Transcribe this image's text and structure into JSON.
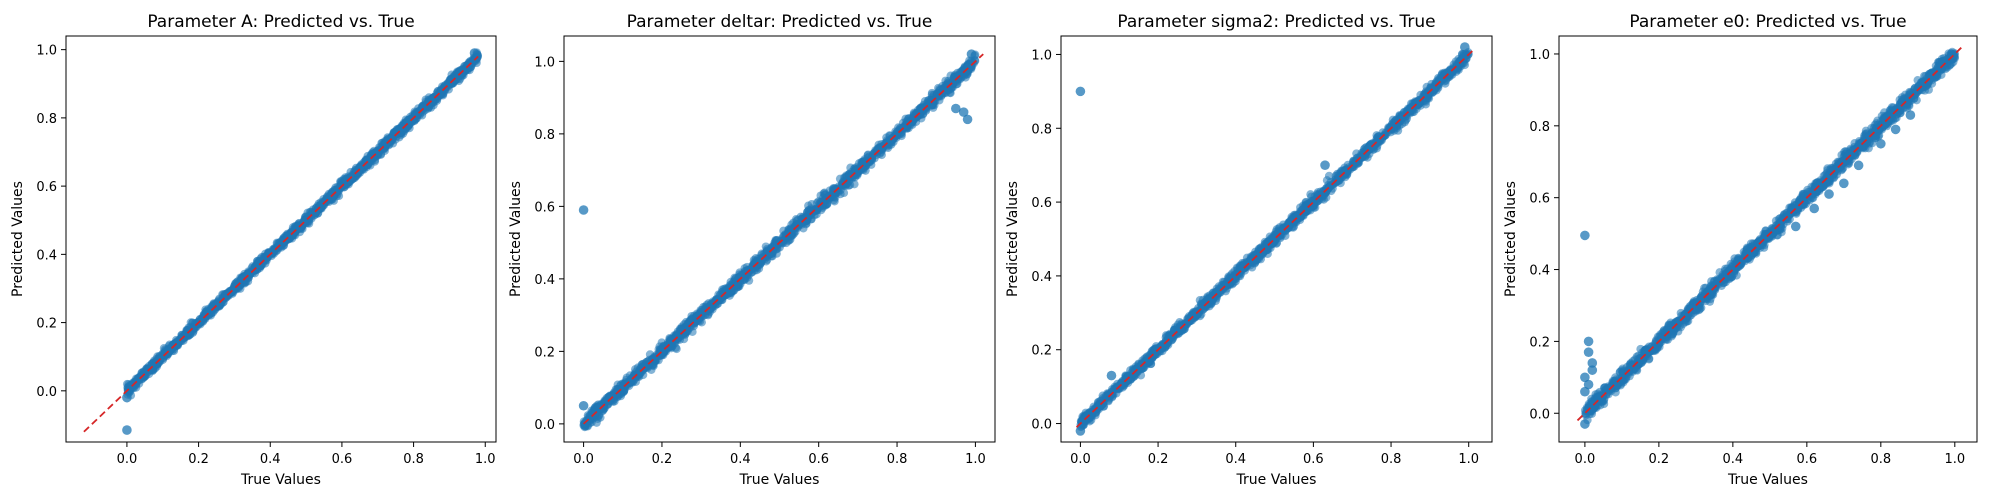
{
  "chart_data": [
    {
      "type": "scatter",
      "title": "Parameter A: Predicted vs. True",
      "xlabel": "True Values",
      "ylabel": "Predicted Values",
      "xlim": [
        -0.17,
        1.03
      ],
      "ylim": [
        -0.15,
        1.04
      ],
      "xticks": [
        "0.0",
        "0.2",
        "0.4",
        "0.6",
        "0.8",
        "1.0"
      ],
      "yticks": [
        "0.0",
        "0.2",
        "0.4",
        "0.6",
        "0.8",
        "1.0"
      ],
      "diagonal": [
        -0.12,
        0.98
      ],
      "true_range": [
        0.0,
        0.98
      ],
      "noise": 0.007,
      "outliers": [
        {
          "x": 0.0,
          "y": -0.115
        },
        {
          "x": 0.0,
          "y": -0.02
        },
        {
          "x": 0.97,
          "y": 0.99
        }
      ]
    },
    {
      "type": "scatter",
      "title": "Parameter deltar: Predicted vs. True",
      "xlabel": "True Values",
      "ylabel": "Predicted Values",
      "xlim": [
        -0.05,
        1.05
      ],
      "ylim": [
        -0.05,
        1.07
      ],
      "xticks": [
        "0.0",
        "0.2",
        "0.4",
        "0.6",
        "0.8",
        "1.0"
      ],
      "yticks": [
        "0.0",
        "0.2",
        "0.4",
        "0.6",
        "0.8",
        "1.0"
      ],
      "diagonal": [
        0.0,
        1.02
      ],
      "true_range": [
        0.0,
        1.0
      ],
      "noise": 0.009,
      "outliers": [
        {
          "x": 0.0,
          "y": 0.59
        },
        {
          "x": 0.97,
          "y": 0.86
        },
        {
          "x": 0.98,
          "y": 0.84
        },
        {
          "x": 0.95,
          "y": 0.87
        },
        {
          "x": 0.99,
          "y": 1.02
        },
        {
          "x": 0.0,
          "y": 0.05
        }
      ]
    },
    {
      "type": "scatter",
      "title": "Parameter sigma2: Predicted vs. True",
      "xlabel": "True Values",
      "ylabel": "Predicted Values",
      "xlim": [
        -0.05,
        1.06
      ],
      "ylim": [
        -0.05,
        1.05
      ],
      "xticks": [
        "0.0",
        "0.2",
        "0.4",
        "0.6",
        "0.8",
        "1.0"
      ],
      "yticks": [
        "0.0",
        "0.2",
        "0.4",
        "0.6",
        "0.8",
        "1.0"
      ],
      "diagonal": [
        -0.01,
        1.01
      ],
      "true_range": [
        0.0,
        1.0
      ],
      "noise": 0.008,
      "outliers": [
        {
          "x": 0.0,
          "y": 0.9
        },
        {
          "x": 0.0,
          "y": -0.02
        },
        {
          "x": 0.08,
          "y": 0.13
        },
        {
          "x": 0.63,
          "y": 0.7
        },
        {
          "x": 0.99,
          "y": 1.02
        }
      ]
    },
    {
      "type": "scatter",
      "title": "Parameter e0: Predicted vs. True",
      "xlabel": "True Values",
      "ylabel": "Predicted Values",
      "xlim": [
        -0.07,
        1.06
      ],
      "ylim": [
        -0.08,
        1.05
      ],
      "xticks": [
        "0.0",
        "0.2",
        "0.4",
        "0.6",
        "0.8",
        "1.0"
      ],
      "yticks": [
        "0.0",
        "0.2",
        "0.4",
        "0.6",
        "0.8",
        "1.0"
      ],
      "diagonal": [
        -0.02,
        1.02
      ],
      "true_range": [
        0.0,
        1.0
      ],
      "noise": 0.01,
      "outliers": [
        {
          "x": 0.0,
          "y": 0.495
        },
        {
          "x": 0.01,
          "y": 0.2
        },
        {
          "x": 0.01,
          "y": 0.17
        },
        {
          "x": 0.02,
          "y": 0.14
        },
        {
          "x": 0.0,
          "y": 0.1
        },
        {
          "x": 0.01,
          "y": 0.08
        },
        {
          "x": 0.02,
          "y": 0.12
        },
        {
          "x": 0.0,
          "y": 0.06
        },
        {
          "x": 0.0,
          "y": -0.03
        },
        {
          "x": 0.74,
          "y": 0.69
        },
        {
          "x": 0.8,
          "y": 0.75
        },
        {
          "x": 0.84,
          "y": 0.79
        },
        {
          "x": 0.7,
          "y": 0.64
        },
        {
          "x": 0.66,
          "y": 0.61
        },
        {
          "x": 0.62,
          "y": 0.57
        },
        {
          "x": 0.57,
          "y": 0.52
        },
        {
          "x": 0.88,
          "y": 0.83
        }
      ]
    }
  ],
  "colors": {
    "points": "#1f77b4",
    "diagonal": "#d62728",
    "axis": "#000000"
  }
}
